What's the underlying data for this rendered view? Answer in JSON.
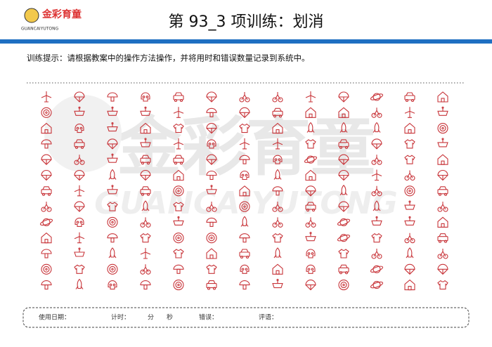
{
  "header": {
    "logo_text": "金彩育童",
    "logo_sub": "GUANCAIYUTONG",
    "title": "第 93_3 项训练：划消"
  },
  "instruction": "训练提示：请根据教案中的操作方法操作，并将用时和错误数量记录到系统中。",
  "watermark": {
    "text": "金彩育童",
    "sub": "GUANCAIYUTONG"
  },
  "footer": {
    "date": "使用日期：",
    "time": "计时：",
    "minute": "分",
    "second": "秒",
    "errors": "错误：",
    "comment": "评语："
  }
}
